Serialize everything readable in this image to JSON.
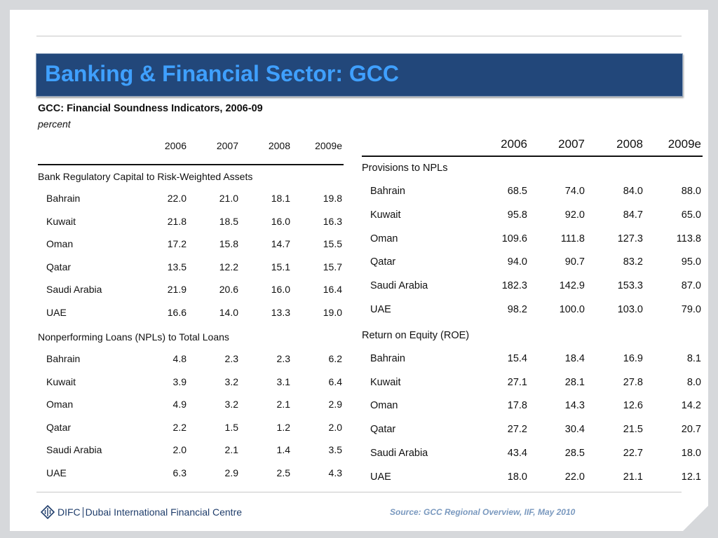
{
  "slide_title": "Banking & Financial Sector: GCC",
  "subtitle": "GCC: Financial Soundness Indicators, 2006-09",
  "unit": "percent",
  "years": [
    "2006",
    "2007",
    "2008",
    "2009e"
  ],
  "left_table": {
    "sections": [
      {
        "title": "Bank Regulatory Capital to Risk-Weighted Assets",
        "rows": [
          {
            "label": "Bahrain",
            "values": [
              "22.0",
              "21.0",
              "18.1",
              "19.8"
            ]
          },
          {
            "label": "Kuwait",
            "values": [
              "21.8",
              "18.5",
              "16.0",
              "16.3"
            ]
          },
          {
            "label": "Oman",
            "values": [
              "17.2",
              "15.8",
              "14.7",
              "15.5"
            ]
          },
          {
            "label": "Qatar",
            "values": [
              "13.5",
              "12.2",
              "15.1",
              "15.7"
            ]
          },
          {
            "label": "Saudi Arabia",
            "values": [
              "21.9",
              "20.6",
              "16.0",
              "16.4"
            ]
          },
          {
            "label": "UAE",
            "values": [
              "16.6",
              "14.0",
              "13.3",
              "19.0"
            ]
          }
        ]
      },
      {
        "title": "Nonperforming Loans (NPLs) to Total Loans",
        "rows": [
          {
            "label": "Bahrain",
            "values": [
              "4.8",
              "2.3",
              "2.3",
              "6.2"
            ]
          },
          {
            "label": "Kuwait",
            "values": [
              "3.9",
              "3.2",
              "3.1",
              "6.4"
            ]
          },
          {
            "label": "Oman",
            "values": [
              "4.9",
              "3.2",
              "2.1",
              "2.9"
            ]
          },
          {
            "label": "Qatar",
            "values": [
              "2.2",
              "1.5",
              "1.2",
              "2.0"
            ]
          },
          {
            "label": "Saudi Arabia",
            "values": [
              "2.0",
              "2.1",
              "1.4",
              "3.5"
            ]
          },
          {
            "label": "UAE",
            "values": [
              "6.3",
              "2.9",
              "2.5",
              "4.3"
            ]
          }
        ]
      }
    ]
  },
  "right_table": {
    "sections": [
      {
        "title": "Provisions to NPLs",
        "rows": [
          {
            "label": "Bahrain",
            "values": [
              "68.5",
              "74.0",
              "84.0",
              "88.0"
            ]
          },
          {
            "label": "Kuwait",
            "values": [
              "95.8",
              "92.0",
              "84.7",
              "65.0"
            ]
          },
          {
            "label": "Oman",
            "values": [
              "109.6",
              "111.8",
              "127.3",
              "113.8"
            ]
          },
          {
            "label": "Qatar",
            "values": [
              "94.0",
              "90.7",
              "83.2",
              "95.0"
            ]
          },
          {
            "label": "Saudi Arabia",
            "values": [
              "182.3",
              "142.9",
              "153.3",
              "87.0"
            ]
          },
          {
            "label": "UAE",
            "values": [
              "98.2",
              "100.0",
              "103.0",
              "79.0"
            ]
          }
        ]
      },
      {
        "title": "Return on Equity (ROE)",
        "rows": [
          {
            "label": "Bahrain",
            "values": [
              "15.4",
              "18.4",
              "16.9",
              "8.1"
            ]
          },
          {
            "label": "Kuwait",
            "values": [
              "27.1",
              "28.1",
              "27.8",
              "8.0"
            ]
          },
          {
            "label": "Oman",
            "values": [
              "17.8",
              "14.3",
              "12.6",
              "14.2"
            ]
          },
          {
            "label": "Qatar",
            "values": [
              "27.2",
              "30.4",
              "21.5",
              "20.7"
            ]
          },
          {
            "label": "Saudi Arabia",
            "values": [
              "43.4",
              "28.5",
              "22.7",
              "18.0"
            ]
          },
          {
            "label": "UAE",
            "values": [
              "18.0",
              "22.0",
              "21.1",
              "12.1"
            ]
          }
        ]
      }
    ]
  },
  "footer": {
    "logo_short": "DIFC",
    "logo_full": "Dubai International Financial Centre",
    "source": "Source: GCC Regional Overview, IIF, May 2010"
  },
  "colors": {
    "title_bar": "#22477a",
    "title_text": "#3fa0ff",
    "source_text": "#7a99bf"
  }
}
